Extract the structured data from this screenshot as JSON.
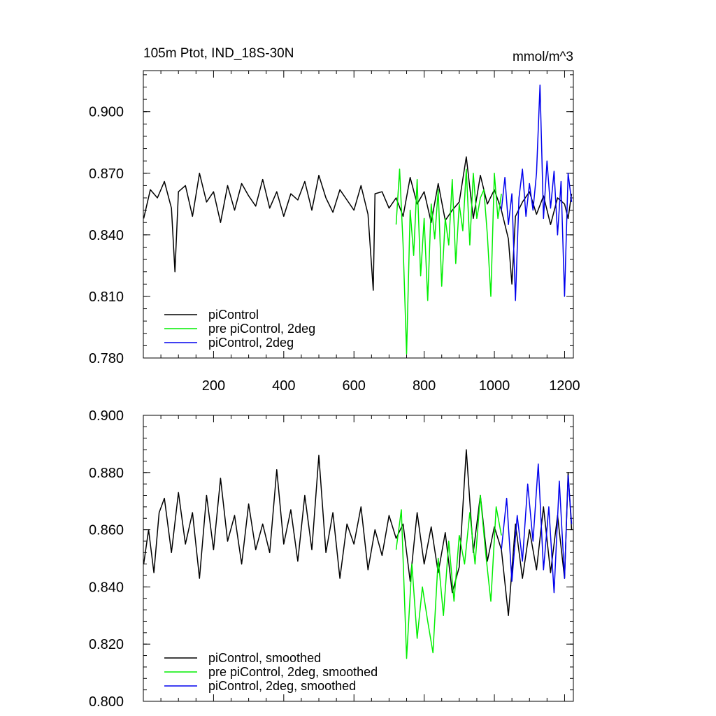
{
  "chart_data": [
    {
      "type": "line",
      "title": "105m Ptot, IND_18S-30N",
      "units": "mmol/m^3",
      "xlim": [
        0,
        1225
      ],
      "ylim": [
        0.78,
        0.92
      ],
      "xticks": [
        200,
        400,
        600,
        800,
        1000,
        1200
      ],
      "xtick_labels": [
        "200",
        "400",
        "600",
        "800",
        "1000",
        "1200"
      ],
      "yticks": [
        0.78,
        0.81,
        0.84,
        0.87,
        0.9
      ],
      "ytick_labels": [
        "0.780",
        "0.810",
        "0.840",
        "0.870",
        "0.900"
      ],
      "legend_position": "bottom-left",
      "series": [
        {
          "name": "piControl",
          "color": "#000000",
          "x": [
            1,
            20,
            40,
            60,
            80,
            90,
            100,
            120,
            140,
            160,
            180,
            200,
            220,
            240,
            260,
            280,
            300,
            320,
            340,
            360,
            380,
            400,
            420,
            440,
            460,
            480,
            500,
            520,
            540,
            560,
            580,
            600,
            620,
            640,
            655,
            660,
            680,
            700,
            720,
            740,
            760,
            780,
            800,
            820,
            840,
            860,
            880,
            900,
            920,
            940,
            960,
            980,
            1000,
            1020,
            1040,
            1050,
            1060,
            1080,
            1100,
            1120,
            1140,
            1160,
            1180,
            1200,
            1210,
            1220
          ],
          "y": [
            0.848,
            0.862,
            0.858,
            0.866,
            0.853,
            0.822,
            0.861,
            0.864,
            0.849,
            0.87,
            0.856,
            0.861,
            0.846,
            0.864,
            0.852,
            0.865,
            0.859,
            0.854,
            0.867,
            0.853,
            0.861,
            0.849,
            0.86,
            0.857,
            0.866,
            0.852,
            0.869,
            0.858,
            0.851,
            0.862,
            0.857,
            0.852,
            0.864,
            0.85,
            0.813,
            0.86,
            0.861,
            0.853,
            0.858,
            0.849,
            0.868,
            0.855,
            0.861,
            0.846,
            0.865,
            0.847,
            0.852,
            0.856,
            0.878,
            0.848,
            0.869,
            0.855,
            0.862,
            0.852,
            0.838,
            0.816,
            0.849,
            0.856,
            0.861,
            0.85,
            0.859,
            0.845,
            0.858,
            0.855,
            0.848,
            0.86
          ]
        },
        {
          "name": "pre piControl, 2deg",
          "color": "#00ee00",
          "x": [
            720,
            730,
            740,
            750,
            760,
            770,
            780,
            790,
            800,
            810,
            820,
            830,
            840,
            850,
            860,
            870,
            880,
            890,
            900,
            910,
            920,
            930,
            940,
            950,
            960,
            970,
            980,
            990,
            1000,
            1010,
            1020
          ],
          "y": [
            0.845,
            0.872,
            0.835,
            0.782,
            0.852,
            0.83,
            0.867,
            0.82,
            0.848,
            0.808,
            0.855,
            0.838,
            0.862,
            0.815,
            0.848,
            0.835,
            0.867,
            0.826,
            0.855,
            0.842,
            0.872,
            0.835,
            0.87,
            0.848,
            0.858,
            0.862,
            0.84,
            0.81,
            0.87,
            0.848,
            0.86
          ]
        },
        {
          "name": "piControl, 2deg",
          "color": "#0000ee",
          "x": [
            1020,
            1030,
            1040,
            1050,
            1060,
            1070,
            1080,
            1090,
            1100,
            1110,
            1120,
            1130,
            1140,
            1150,
            1160,
            1170,
            1180,
            1190,
            1200,
            1210,
            1220
          ],
          "y": [
            0.852,
            0.868,
            0.845,
            0.86,
            0.808,
            0.858,
            0.872,
            0.849,
            0.865,
            0.852,
            0.87,
            0.913,
            0.848,
            0.876,
            0.853,
            0.871,
            0.84,
            0.866,
            0.81,
            0.87,
            0.856
          ]
        }
      ]
    },
    {
      "type": "line",
      "xlim": [
        0,
        1225
      ],
      "ylim": [
        0.8,
        0.9
      ],
      "xticks": [
        200,
        400,
        600,
        800,
        1000,
        1200
      ],
      "yticks": [
        0.8,
        0.82,
        0.84,
        0.86,
        0.88,
        0.9
      ],
      "ytick_labels": [
        "0.800",
        "0.820",
        "0.840",
        "0.860",
        "0.880",
        "0.900"
      ],
      "legend_position": "bottom-left",
      "series": [
        {
          "name": "piControl, smoothed",
          "color": "#000000",
          "x": [
            1,
            15,
            30,
            45,
            60,
            80,
            100,
            120,
            140,
            160,
            180,
            200,
            220,
            240,
            260,
            280,
            300,
            320,
            340,
            360,
            380,
            400,
            420,
            440,
            460,
            480,
            500,
            520,
            540,
            560,
            580,
            600,
            620,
            640,
            660,
            680,
            700,
            720,
            740,
            760,
            780,
            800,
            820,
            840,
            860,
            880,
            900,
            920,
            940,
            960,
            980,
            1000,
            1020,
            1040,
            1060,
            1080,
            1100,
            1120,
            1140,
            1160,
            1180,
            1200,
            1210,
            1220
          ],
          "y": [
            0.848,
            0.86,
            0.845,
            0.866,
            0.871,
            0.852,
            0.873,
            0.855,
            0.866,
            0.843,
            0.872,
            0.853,
            0.878,
            0.856,
            0.865,
            0.848,
            0.869,
            0.853,
            0.862,
            0.852,
            0.881,
            0.855,
            0.867,
            0.849,
            0.872,
            0.853,
            0.886,
            0.852,
            0.866,
            0.843,
            0.862,
            0.855,
            0.868,
            0.846,
            0.86,
            0.851,
            0.865,
            0.857,
            0.862,
            0.842,
            0.866,
            0.848,
            0.861,
            0.845,
            0.859,
            0.838,
            0.847,
            0.888,
            0.852,
            0.872,
            0.849,
            0.861,
            0.853,
            0.83,
            0.862,
            0.843,
            0.86,
            0.846,
            0.868,
            0.845,
            0.865,
            0.843,
            0.88,
            0.86
          ]
        },
        {
          "name": "pre piControl, 2deg, smoothed",
          "color": "#00ee00",
          "x": [
            720,
            735,
            750,
            765,
            780,
            795,
            810,
            825,
            840,
            855,
            870,
            885,
            900,
            915,
            930,
            945,
            960,
            975,
            990,
            1005,
            1020
          ],
          "y": [
            0.853,
            0.867,
            0.815,
            0.848,
            0.822,
            0.84,
            0.828,
            0.817,
            0.85,
            0.83,
            0.856,
            0.835,
            0.858,
            0.848,
            0.866,
            0.848,
            0.872,
            0.852,
            0.835,
            0.868,
            0.858
          ]
        },
        {
          "name": "piControl, 2deg, smoothed",
          "color": "#0000ee",
          "x": [
            1020,
            1035,
            1050,
            1065,
            1080,
            1095,
            1110,
            1125,
            1140,
            1155,
            1170,
            1185,
            1200,
            1210,
            1220
          ],
          "y": [
            0.853,
            0.871,
            0.842,
            0.865,
            0.849,
            0.876,
            0.856,
            0.883,
            0.846,
            0.868,
            0.838,
            0.877,
            0.843,
            0.879,
            0.862
          ]
        }
      ]
    }
  ]
}
